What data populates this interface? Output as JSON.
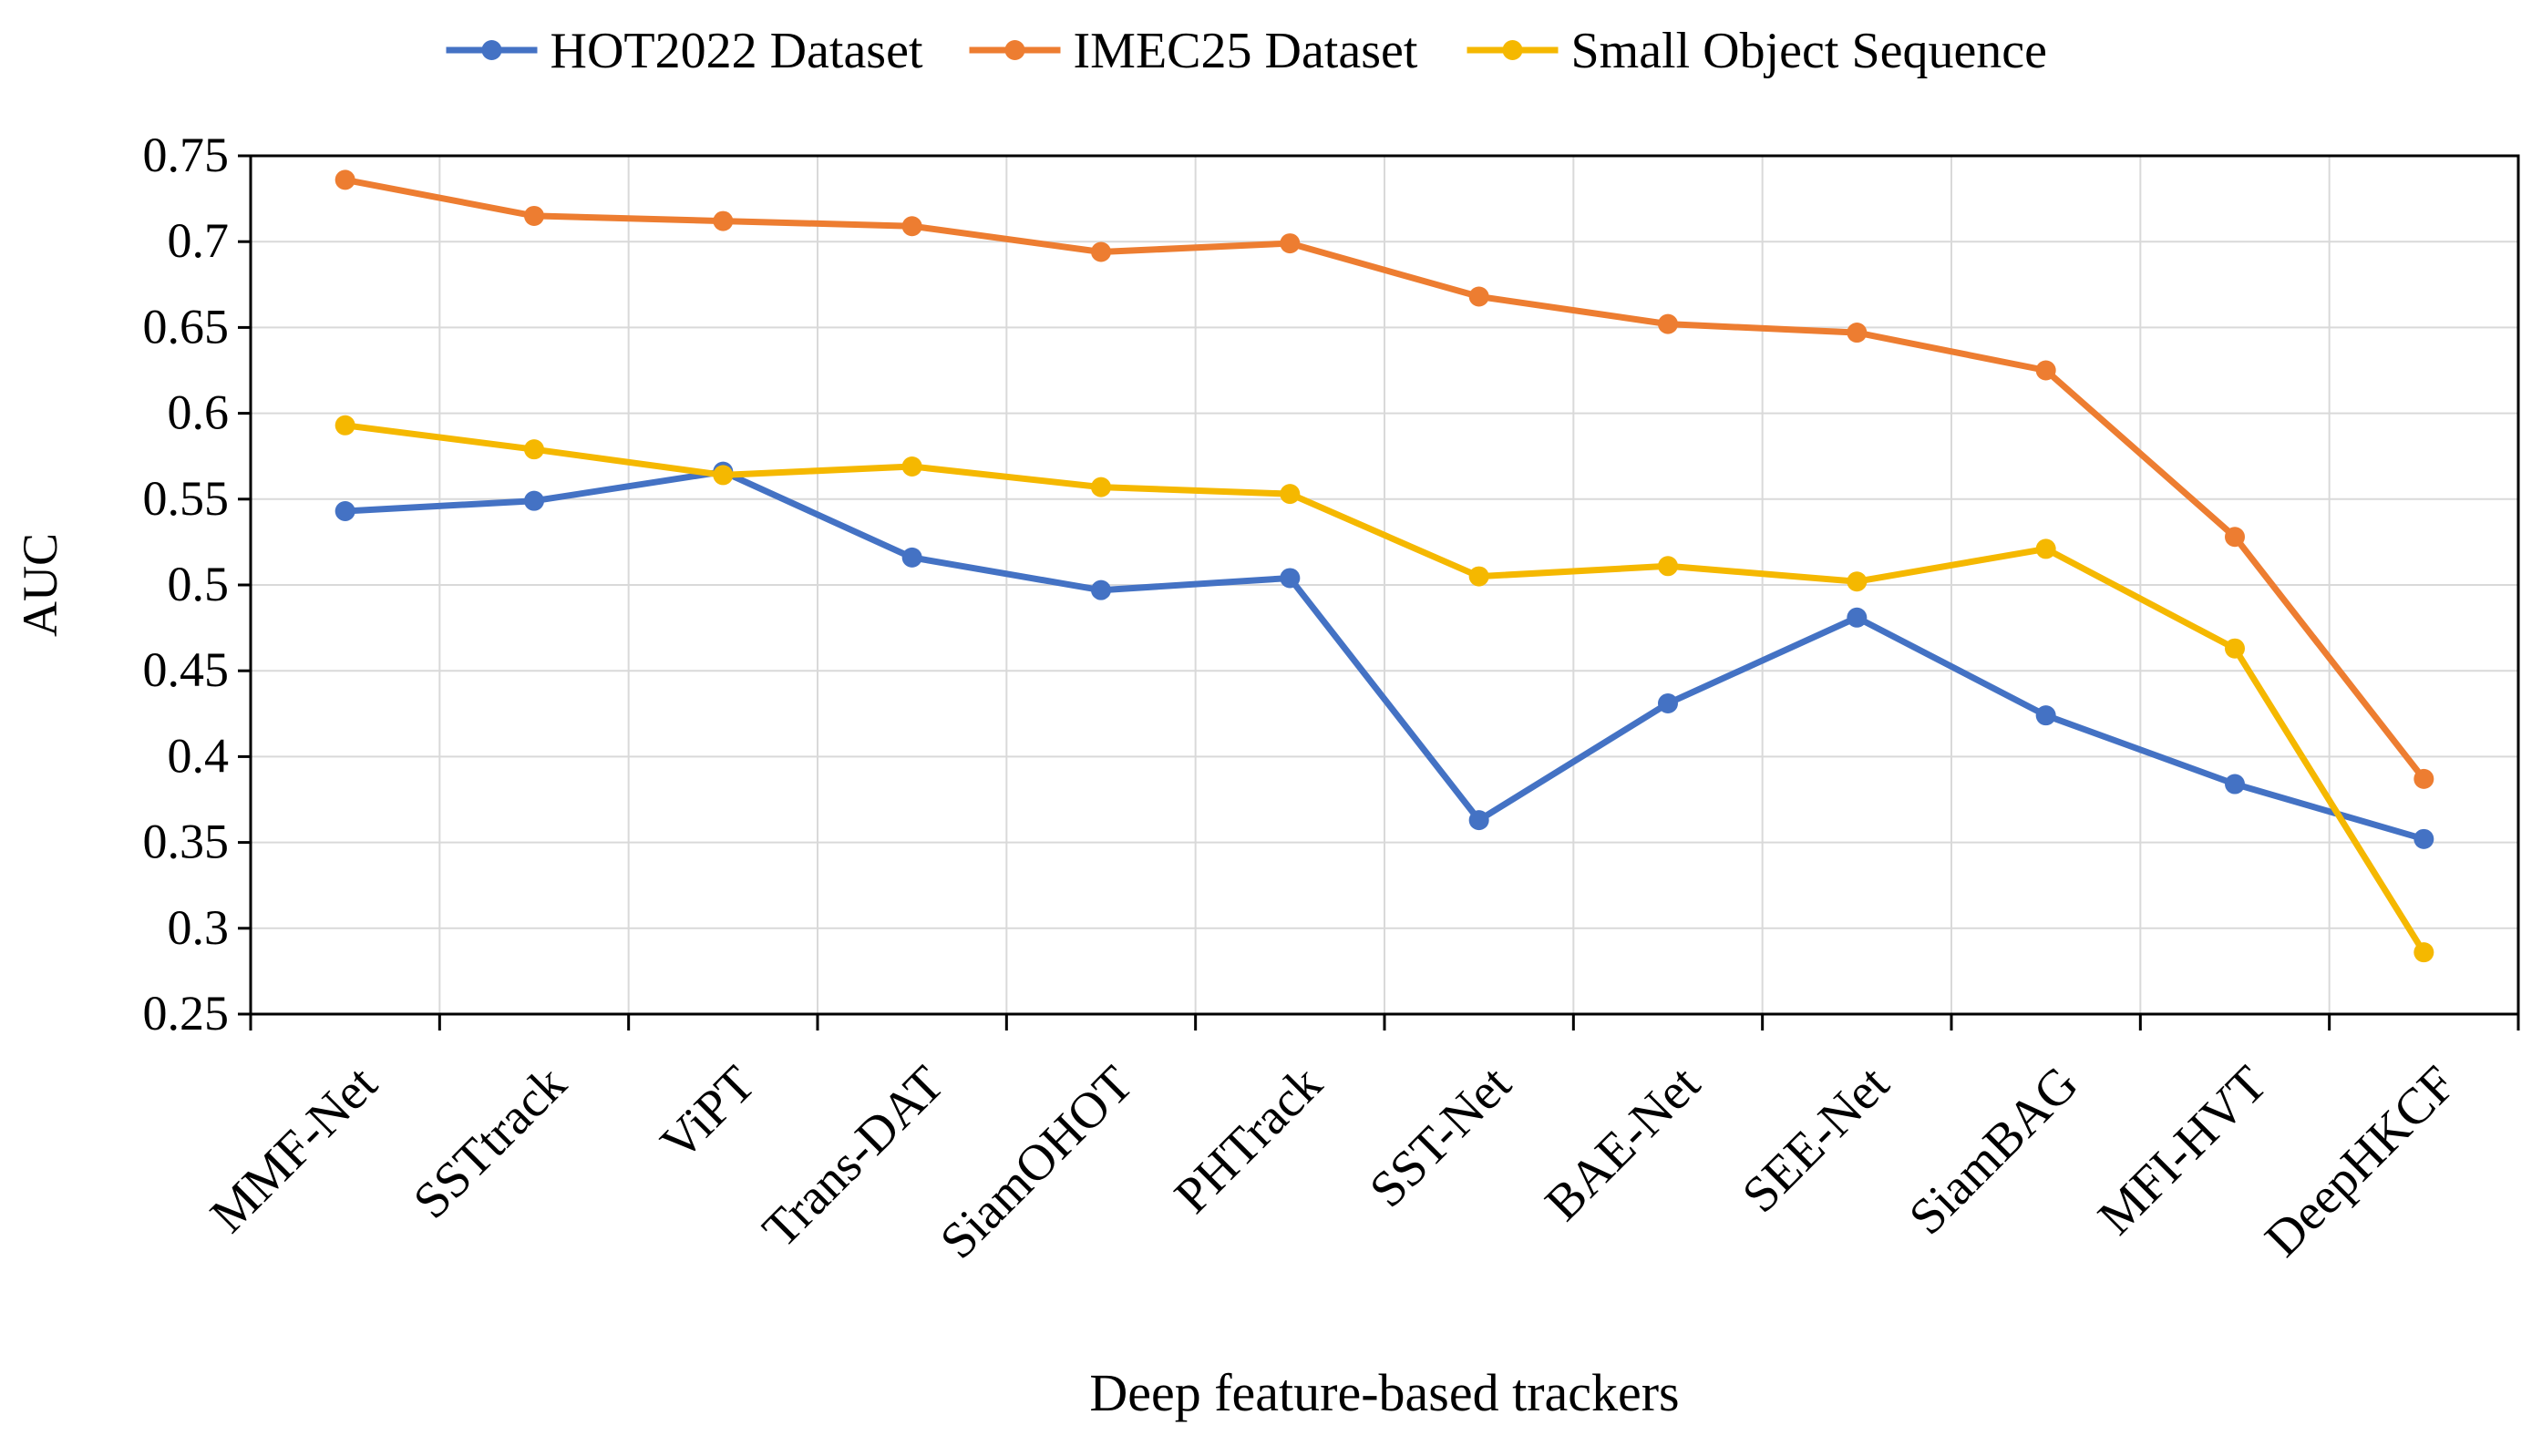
{
  "chart_data": {
    "type": "line",
    "title": "",
    "xlabel": "Deep feature-based trackers",
    "ylabel": "AUC",
    "categories": [
      "MMF-Net",
      "SSTtrack",
      "ViPT",
      "Trans-DAT",
      "SiamOHOT",
      "PHTrack",
      "SST-Net",
      "BAE-Net",
      "SEE-Net",
      "SiamBAG",
      "MFI-HVT",
      "DeepHKCF"
    ],
    "ylim": [
      0.25,
      0.75
    ],
    "yticks": [
      0.25,
      0.3,
      0.35,
      0.4,
      0.45,
      0.5,
      0.55,
      0.6,
      0.65,
      0.7,
      0.75
    ],
    "ytick_labels": [
      "0.25",
      "0.3",
      "0.35",
      "0.4",
      "0.45",
      "0.5",
      "0.55",
      "0.6",
      "0.65",
      "0.7",
      "0.75"
    ],
    "grid": true,
    "legend_position": "top",
    "series": [
      {
        "name": "HOT2022 Dataset",
        "color": "#4472C4",
        "values": [
          0.543,
          0.549,
          0.566,
          0.516,
          0.497,
          0.504,
          0.363,
          0.431,
          0.481,
          0.424,
          0.384,
          0.352
        ]
      },
      {
        "name": "IMEC25 Dataset",
        "color": "#ED7D31",
        "values": [
          0.736,
          0.715,
          0.712,
          0.709,
          0.694,
          0.699,
          0.668,
          0.652,
          0.647,
          0.625,
          0.528,
          0.387
        ]
      },
      {
        "name": "Small Object Sequence",
        "color": "#F5B800",
        "values": [
          0.593,
          0.579,
          0.564,
          0.569,
          0.557,
          0.553,
          0.505,
          0.511,
          0.502,
          0.521,
          0.463,
          0.286
        ]
      }
    ]
  }
}
